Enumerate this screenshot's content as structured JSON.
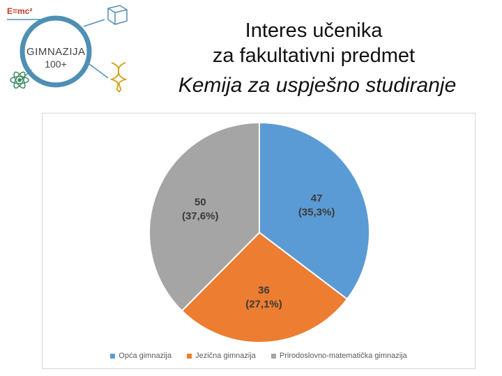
{
  "logo": {
    "formula": "E=mc²",
    "name_line1": "GIMNAZIJA",
    "name_line2": "100+",
    "icons": [
      "cube-icon",
      "atom-icon",
      "dna-icon"
    ],
    "colors": {
      "ring": "#4f8fb4",
      "accent": "#d4a017"
    }
  },
  "header": {
    "title_line1": "Interes učenika",
    "title_line2": "za fakultativni predmet",
    "title_line3": "Kemija za uspješno studiranje"
  },
  "chart_data": {
    "type": "pie",
    "title": "",
    "categories": [
      "Opća gimnazija",
      "Jezična gimnazija",
      "Prirodoslovno-matematička gimnazija"
    ],
    "values": [
      47,
      36,
      50
    ],
    "percent_labels": [
      "(35,3%)",
      "(27,1%)",
      "(37,6%)"
    ],
    "value_labels": [
      "47",
      "36",
      "50"
    ],
    "colors": [
      "#5b9bd5",
      "#ed7d31",
      "#a5a5a5"
    ],
    "start_angle_deg": 0,
    "direction": "clockwise",
    "legend_position": "bottom"
  }
}
